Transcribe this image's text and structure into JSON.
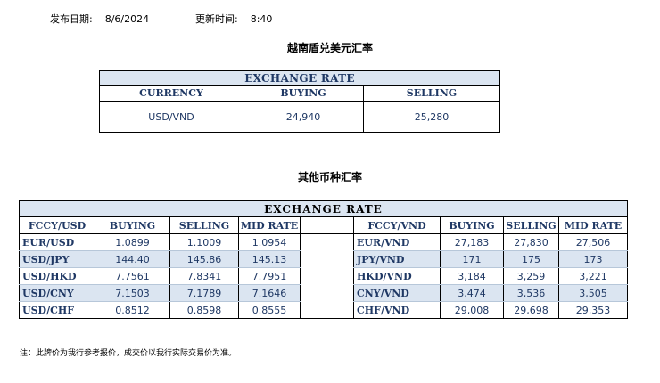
{
  "meta": {
    "publish_label": "发布日期:",
    "publish_date": "8/6/2024",
    "update_label": "更新时间:",
    "update_time": "8:40"
  },
  "usd_vnd": {
    "title": "越南盾兑美元汇率",
    "header": "EXCHANGE RATE",
    "columns": [
      "CURRENCY",
      "BUYING",
      "SELLING"
    ],
    "row": {
      "currency": "USD/VND",
      "buying": "24,940",
      "selling": "25,280"
    }
  },
  "others": {
    "title": "其他币种汇率",
    "header": "EXCHANGE  RATE",
    "left_columns": [
      "FCCY/USD",
      "BUYING",
      "SELLING",
      "MID RATE"
    ],
    "right_columns": [
      "FCCY/VND",
      "BUYING",
      "SELLING",
      "MID RATE"
    ],
    "left_rows": [
      {
        "pair": "EUR/USD",
        "buying": "1.0899",
        "selling": "1.1009",
        "mid": "1.0954"
      },
      {
        "pair": "USD/JPY",
        "buying": "144.40",
        "selling": "145.86",
        "mid": "145.13"
      },
      {
        "pair": "USD/HKD",
        "buying": "7.7561",
        "selling": "7.8341",
        "mid": "7.7951"
      },
      {
        "pair": "USD/CNY",
        "buying": "7.1503",
        "selling": "7.1789",
        "mid": "7.1646"
      },
      {
        "pair": "USD/CHF",
        "buying": "0.8512",
        "selling": "0.8598",
        "mid": "0.8555"
      }
    ],
    "right_rows": [
      {
        "pair": "EUR/VND",
        "buying": "27,183",
        "selling": "27,830",
        "mid": "27,506"
      },
      {
        "pair": "JPY/VND",
        "buying": "171",
        "selling": "175",
        "mid": "173"
      },
      {
        "pair": "HKD/VND",
        "buying": "3,184",
        "selling": "3,259",
        "mid": "3,221"
      },
      {
        "pair": "CNY/VND",
        "buying": "3,474",
        "selling": "3,536",
        "mid": "3,505"
      },
      {
        "pair": "CHF/VND",
        "buying": "29,008",
        "selling": "29,698",
        "mid": "29,353"
      }
    ]
  },
  "note": "注：此牌价为我行参考报价，成交价以我行实际交易价为准。"
}
